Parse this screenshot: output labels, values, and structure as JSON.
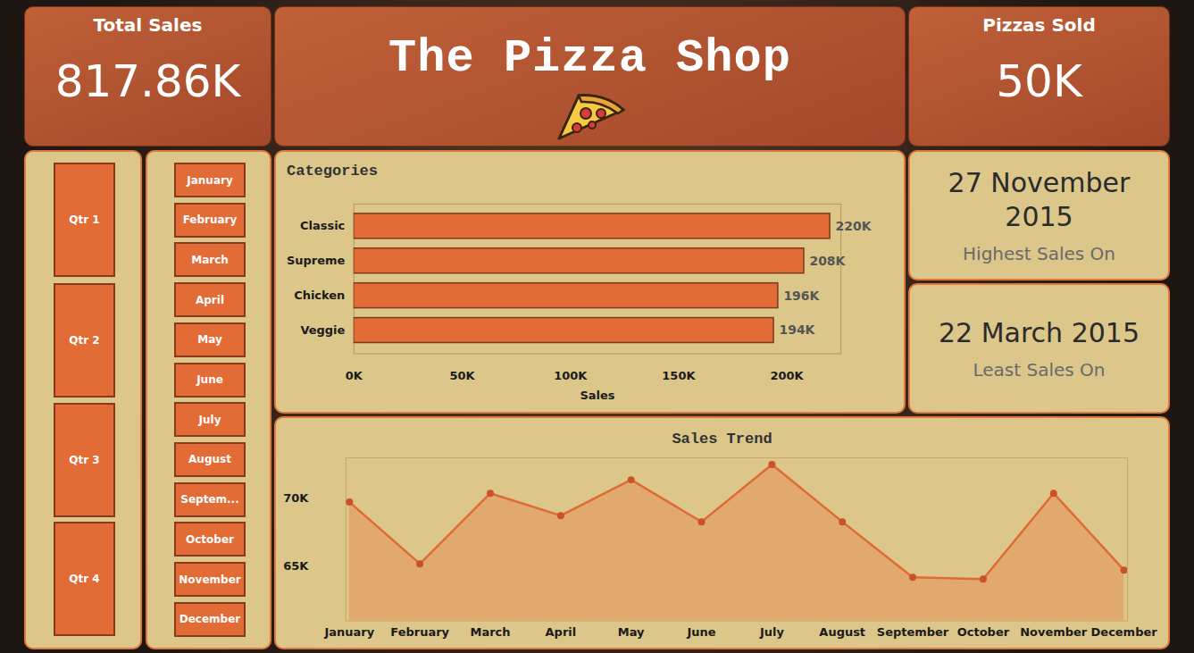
{
  "dashboard": {
    "title": "The Pizza Shop",
    "kpis": [
      {
        "label": "Total Sales",
        "value": "817.86K"
      },
      {
        "label": "Pizzas Sold",
        "value": "50K"
      }
    ],
    "quarters": [
      "Qtr 1",
      "Qtr 2",
      "Qtr 3",
      "Qtr 4"
    ],
    "months": [
      "January",
      "February",
      "March",
      "April",
      "May",
      "June",
      "July",
      "August",
      "Septem...",
      "October",
      "November",
      "December"
    ],
    "highlights": [
      {
        "value": "27 November 2015",
        "label": "Highest Sales On"
      },
      {
        "value": "22 March 2015",
        "label": "Least Sales On"
      }
    ]
  },
  "chart_data": [
    {
      "type": "bar",
      "title": "Categories",
      "orientation": "horizontal",
      "categories": [
        "Classic",
        "Supreme",
        "Chicken",
        "Veggie"
      ],
      "values": [
        220000,
        208000,
        196000,
        194000
      ],
      "value_labels": [
        "220K",
        "208K",
        "196K",
        "194K"
      ],
      "data_labels": true,
      "color": "#e36b36",
      "grid": false,
      "x_label": "Sales",
      "xlim": [
        0,
        225000
      ],
      "xticks": [
        {
          "value": 0,
          "label": "0K"
        },
        {
          "value": 50000,
          "label": "50K"
        },
        {
          "value": 100000,
          "label": "100K"
        },
        {
          "value": 150000,
          "label": "150K"
        },
        {
          "value": 200000,
          "label": "200K"
        }
      ]
    },
    {
      "type": "area",
      "title": "Sales Trend",
      "categories": [
        "January",
        "February",
        "March",
        "April",
        "May",
        "June",
        "July",
        "August",
        "September",
        "October",
        "November",
        "December"
      ],
      "values": [
        69740,
        65200,
        70390,
        68750,
        71380,
        68290,
        72500,
        68290,
        64210,
        64080,
        70390,
        64740
      ],
      "color": "#e06a35",
      "marker": "circle",
      "grid": false,
      "ylim": [
        61000,
        73000
      ],
      "yticks": [
        {
          "value": 65000,
          "label": "65K"
        },
        {
          "value": 70000,
          "label": "70K"
        }
      ]
    }
  ]
}
